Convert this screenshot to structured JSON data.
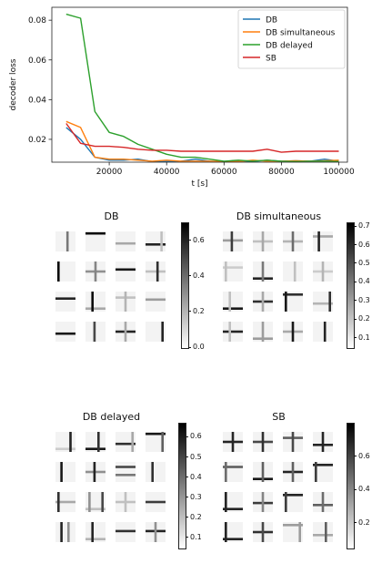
{
  "chart_data": [
    {
      "type": "line",
      "xlabel": "t [s]",
      "ylabel": "decoder loss",
      "xlim": [
        0,
        103000
      ],
      "ylim": [
        0.0085,
        0.0865
      ],
      "xticks": [
        20000,
        40000,
        60000,
        80000,
        100000
      ],
      "xtick_labels": [
        "20000",
        "40000",
        "60000",
        "80000",
        "100000"
      ],
      "yticks": [
        0.02,
        0.04,
        0.06,
        0.08
      ],
      "ytick_labels": [
        "0.02",
        "0.04",
        "0.06",
        "0.08"
      ],
      "grid": false,
      "legend_position": "top-right",
      "x": [
        5000,
        10000,
        15000,
        20000,
        25000,
        30000,
        35000,
        40000,
        45000,
        50000,
        55000,
        60000,
        65000,
        70000,
        75000,
        80000,
        85000,
        90000,
        95000,
        100000
      ],
      "series": [
        {
          "name": "DB",
          "color": "#1f77b4",
          "values": [
            0.026,
            0.02,
            0.011,
            0.0095,
            0.0095,
            0.01,
            0.0088,
            0.0088,
            0.009,
            0.01,
            0.009,
            0.0088,
            0.009,
            0.0088,
            0.0095,
            0.009,
            0.0092,
            0.009,
            0.01,
            0.009
          ]
        },
        {
          "name": "DB simultaneous",
          "color": "#ff7f0e",
          "values": [
            0.029,
            0.026,
            0.011,
            0.01,
            0.01,
            0.0095,
            0.009,
            0.0095,
            0.009,
            0.009,
            0.009,
            0.0088,
            0.0088,
            0.0095,
            0.009,
            0.009,
            0.0092,
            0.009,
            0.0092,
            0.0095
          ]
        },
        {
          "name": "DB delayed",
          "color": "#2ca02c",
          "values": [
            0.083,
            0.081,
            0.034,
            0.0235,
            0.0215,
            0.0175,
            0.015,
            0.0125,
            0.011,
            0.011,
            0.01,
            0.009,
            0.0095,
            0.009,
            0.0095,
            0.009,
            0.0088,
            0.009,
            0.009,
            0.0088
          ]
        },
        {
          "name": "SB",
          "color": "#d62728",
          "values": [
            0.028,
            0.018,
            0.0165,
            0.0165,
            0.016,
            0.015,
            0.0145,
            0.0145,
            0.014,
            0.014,
            0.014,
            0.014,
            0.014,
            0.014,
            0.015,
            0.0135,
            0.014,
            0.014,
            0.014,
            0.014
          ]
        }
      ]
    },
    {
      "type": "heatmap",
      "title": "DB",
      "colorbar_ticks": [
        0.0,
        0.2,
        0.4,
        0.6
      ],
      "colorbar_tick_labels": [
        "0.0",
        "0.2",
        "0.4",
        "0.6"
      ],
      "colorbar_range": [
        0,
        0.7
      ],
      "tiles": [
        {
          "v": [
            [
              0.6,
              0.5
            ]
          ]
        },
        {
          "h": [
            [
              0.1,
              0.95
            ]
          ]
        },
        {
          "h": [
            [
              0.6,
              0.3
            ]
          ]
        },
        {
          "v": [
            [
              0.8,
              0.2
            ]
          ],
          "h": [
            [
              0.65,
              0.85
            ]
          ]
        },
        {
          "v": [
            [
              0.15,
              0.95
            ]
          ]
        },
        {
          "v": [
            [
              0.5,
              0.45
            ]
          ],
          "h": [
            [
              0.5,
              0.4
            ]
          ]
        },
        {
          "h": [
            [
              0.4,
              0.9
            ]
          ]
        },
        {
          "v": [
            [
              0.6,
              0.8
            ]
          ],
          "h": [
            [
              0.5,
              0.2
            ]
          ]
        },
        {
          "h": [
            [
              0.35,
              0.85
            ]
          ]
        },
        {
          "v": [
            [
              0.35,
              0.95
            ]
          ],
          "h": [
            [
              0.85,
              0.3
            ]
          ]
        },
        {
          "v": [
            [
              0.5,
              0.25
            ]
          ],
          "h": [
            [
              0.3,
              0.2
            ]
          ]
        },
        {
          "h": [
            [
              0.4,
              0.35
            ]
          ]
        },
        {
          "h": [
            [
              0.6,
              0.9
            ]
          ]
        },
        {
          "v": [
            [
              0.45,
              0.7
            ]
          ]
        },
        {
          "v": [
            [
              0.5,
              0.3
            ]
          ],
          "h": [
            [
              0.5,
              0.85
            ]
          ]
        },
        {
          "v": [
            [
              0.85,
              0.85
            ]
          ]
        }
      ]
    },
    {
      "type": "heatmap",
      "title": "DB simultaneous",
      "colorbar_ticks": [
        0.1,
        0.2,
        0.3,
        0.4,
        0.5,
        0.6,
        0.7
      ],
      "colorbar_tick_labels": [
        "0.1",
        "0.2",
        "0.3",
        "0.4",
        "0.5",
        "0.6",
        "0.7"
      ],
      "colorbar_range": [
        0.05,
        0.72
      ],
      "tiles": [
        {
          "v": [
            [
              0.45,
              0.75
            ]
          ],
          "h": [
            [
              0.45,
              0.35
            ]
          ]
        },
        {
          "v": [
            [
              0.5,
              0.3
            ]
          ],
          "h": [
            [
              0.5,
              0.2
            ]
          ]
        },
        {
          "v": [
            [
              0.5,
              0.55
            ]
          ],
          "h": [
            [
              0.5,
              0.25
            ]
          ]
        },
        {
          "v": [
            [
              0.3,
              0.85
            ]
          ],
          "h": [
            [
              0.25,
              0.3
            ]
          ]
        },
        {
          "v": [
            [
              0.15,
              0.2
            ]
          ],
          "h": [
            [
              0.3,
              0.15
            ]
          ]
        },
        {
          "v": [
            [
              0.5,
              0.5
            ]
          ],
          "h": [
            [
              0.85,
              0.85
            ]
          ]
        },
        {
          "v": [
            [
              0.6,
              0.2
            ]
          ]
        },
        {
          "v": [
            [
              0.5,
              0.25
            ]
          ],
          "h": [
            [
              0.5,
              0.15
            ]
          ]
        },
        {
          "v": [
            [
              0.35,
              0.2
            ]
          ],
          "h": [
            [
              0.85,
              0.9
            ]
          ]
        },
        {
          "v": [
            [
              0.5,
              0.3
            ]
          ],
          "h": [
            [
              0.5,
              0.8
            ]
          ]
        },
        {
          "v": [
            [
              0.15,
              0.9
            ]
          ],
          "h": [
            [
              0.15,
              0.8
            ]
          ]
        },
        {
          "v": [
            [
              0.85,
              0.8
            ]
          ],
          "h": [
            [
              0.6,
              0.25
            ]
          ]
        },
        {
          "v": [
            [
              0.35,
              0.2
            ]
          ],
          "h": [
            [
              0.5,
              0.85
            ]
          ]
        },
        {
          "v": [
            [
              0.5,
              0.35
            ]
          ],
          "h": [
            [
              0.85,
              0.35
            ]
          ]
        },
        {
          "v": [
            [
              0.5,
              0.9
            ]
          ],
          "h": [
            [
              0.5,
              0.3
            ]
          ]
        },
        {
          "v": [
            [
              0.6,
              0.85
            ]
          ]
        }
      ]
    },
    {
      "type": "heatmap",
      "title": "DB delayed",
      "colorbar_ticks": [
        0.1,
        0.2,
        0.3,
        0.4,
        0.5,
        0.6
      ],
      "colorbar_tick_labels": [
        "0.1",
        "0.2",
        "0.3",
        "0.4",
        "0.5",
        "0.6"
      ],
      "colorbar_range": [
        0.05,
        0.67
      ],
      "tiles": [
        {
          "v": [
            [
              0.75,
              0.85
            ]
          ],
          "h": [
            [
              0.85,
              0.15
            ]
          ]
        },
        {
          "v": [
            [
              0.65,
              0.8
            ]
          ],
          "h": [
            [
              0.85,
              0.9
            ]
          ]
        },
        {
          "v": [
            [
              0.85,
              0.3
            ]
          ],
          "h": [
            [
              0.6,
              0.8
            ]
          ]
        },
        {
          "v": [
            [
              0.85,
              0.6
            ]
          ],
          "h": [
            [
              0.1,
              0.9
            ]
          ]
        },
        {
          "v": [
            [
              0.3,
              0.9
            ]
          ]
        },
        {
          "v": [
            [
              0.45,
              0.85
            ]
          ],
          "h": [
            [
              0.5,
              0.4
            ]
          ]
        },
        {
          "h": [
            [
              0.25,
              0.7
            ],
            [
              0.65,
              0.5
            ]
          ]
        },
        {
          "v": [
            [
              0.35,
              0.8
            ]
          ]
        },
        {
          "v": [
            [
              0.15,
              0.8
            ]
          ],
          "h": [
            [
              0.5,
              0.3
            ]
          ]
        },
        {
          "v": [
            [
              0.2,
              0.4
            ],
            [
              0.85,
              0.7
            ]
          ],
          "h": [
            [
              0.85,
              0.2
            ]
          ]
        },
        {
          "v": [
            [
              0.5,
              0.2
            ]
          ],
          "h": [
            [
              0.5,
              0.2
            ]
          ]
        },
        {
          "h": [
            [
              0.5,
              0.75
            ]
          ]
        },
        {
          "v": [
            [
              0.3,
              0.85
            ],
            [
              0.65,
              0.4
            ]
          ]
        },
        {
          "v": [
            [
              0.35,
              0.85
            ]
          ],
          "h": [
            [
              0.85,
              0.25
            ]
          ]
        },
        {
          "h": [
            [
              0.45,
              0.8
            ]
          ]
        },
        {
          "v": [
            [
              0.5,
              0.4
            ]
          ],
          "h": [
            [
              0.45,
              0.85
            ]
          ]
        }
      ]
    },
    {
      "type": "heatmap",
      "title": "SB",
      "colorbar_ticks": [
        0.2,
        0.4,
        0.6
      ],
      "colorbar_tick_labels": [
        "0.2",
        "0.4",
        "0.6"
      ],
      "colorbar_range": [
        0.05,
        0.8
      ],
      "tiles": [
        {
          "v": [
            [
              0.5,
              0.85
            ]
          ],
          "h": [
            [
              0.5,
              0.85
            ]
          ]
        },
        {
          "v": [
            [
              0.5,
              0.8
            ]
          ],
          "h": [
            [
              0.5,
              0.7
            ]
          ]
        },
        {
          "v": [
            [
              0.5,
              0.7
            ]
          ],
          "h": [
            [
              0.3,
              0.6
            ]
          ]
        },
        {
          "v": [
            [
              0.5,
              0.85
            ]
          ],
          "h": [
            [
              0.65,
              0.85
            ]
          ]
        },
        {
          "v": [
            [
              0.15,
              0.55
            ]
          ],
          "h": [
            [
              0.25,
              0.6
            ]
          ]
        },
        {
          "v": [
            [
              0.5,
              0.6
            ]
          ],
          "h": [
            [
              0.85,
              0.9
            ]
          ]
        },
        {
          "v": [
            [
              0.5,
              0.6
            ]
          ],
          "h": [
            [
              0.5,
              0.85
            ]
          ]
        },
        {
          "v": [
            [
              0.15,
              0.75
            ]
          ],
          "h": [
            [
              0.15,
              0.85
            ]
          ]
        },
        {
          "v": [
            [
              0.15,
              0.85
            ]
          ],
          "h": [
            [
              0.85,
              0.85
            ]
          ]
        },
        {
          "v": [
            [
              0.5,
              0.45
            ]
          ],
          "h": [
            [
              0.55,
              0.75
            ]
          ]
        },
        {
          "v": [
            [
              0.15,
              0.75
            ]
          ],
          "h": [
            [
              0.15,
              0.85
            ]
          ]
        },
        {
          "v": [
            [
              0.5,
              0.55
            ]
          ],
          "h": [
            [
              0.65,
              0.6
            ]
          ]
        },
        {
          "v": [
            [
              0.15,
              0.85
            ]
          ],
          "h": [
            [
              0.85,
              0.85
            ]
          ]
        },
        {
          "v": [
            [
              0.5,
              0.7
            ]
          ],
          "h": [
            [
              0.5,
              0.8
            ]
          ]
        },
        {
          "v": [
            [
              0.85,
              0.35
            ]
          ],
          "h": [
            [
              0.15,
              0.35
            ]
          ]
        },
        {
          "v": [
            [
              0.65,
              0.6
            ]
          ],
          "h": [
            [
              0.65,
              0.3
            ]
          ]
        }
      ]
    }
  ]
}
